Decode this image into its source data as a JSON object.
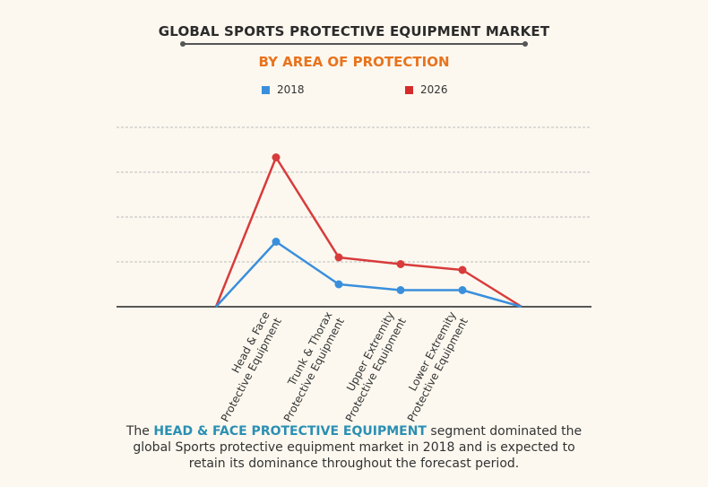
{
  "chart_data": {
    "type": "line",
    "title": "GLOBAL SPORTS PROTECTIVE EQUIPMENT MARKET",
    "subtitle": "BY  AREA OF PROTECTION",
    "xlabel": "",
    "ylabel": "",
    "ylim": [
      0,
      4
    ],
    "grid": true,
    "legend_position": "top-center",
    "categories": [
      "",
      "Head & Face Protective Equipment",
      "Trunk & Thorax Protective Equipment",
      "Upper Extremity Protective Equipment",
      "Lower Extremity Protective Equipment",
      ""
    ],
    "tick_labels": [
      {
        "line1": "Head & Face",
        "line2": "Protective Equipment"
      },
      {
        "line1": "Trunk & Thorax",
        "line2": "Protective Equipment"
      },
      {
        "line1": "Upper Extremity",
        "line2": "Protective Equipment"
      },
      {
        "line1": "Lower Extremity",
        "line2": "Protective Equipment"
      }
    ],
    "series": [
      {
        "name": "2018",
        "color": "#3a8fdc",
        "values": [
          0,
          1.45,
          0.5,
          0.37,
          0.37,
          0
        ]
      },
      {
        "name": "2026",
        "color": "#d83b3b",
        "values": [
          0,
          3.33,
          1.1,
          0.95,
          0.82,
          0
        ]
      }
    ]
  },
  "caption": {
    "before": "The ",
    "highlight": "HEAD & FACE PROTECTIVE EQUIPMENT",
    "after": " segment dominated the global Sports protective equipment market in 2018 and is expected to retain its dominance throughout the forecast period."
  }
}
